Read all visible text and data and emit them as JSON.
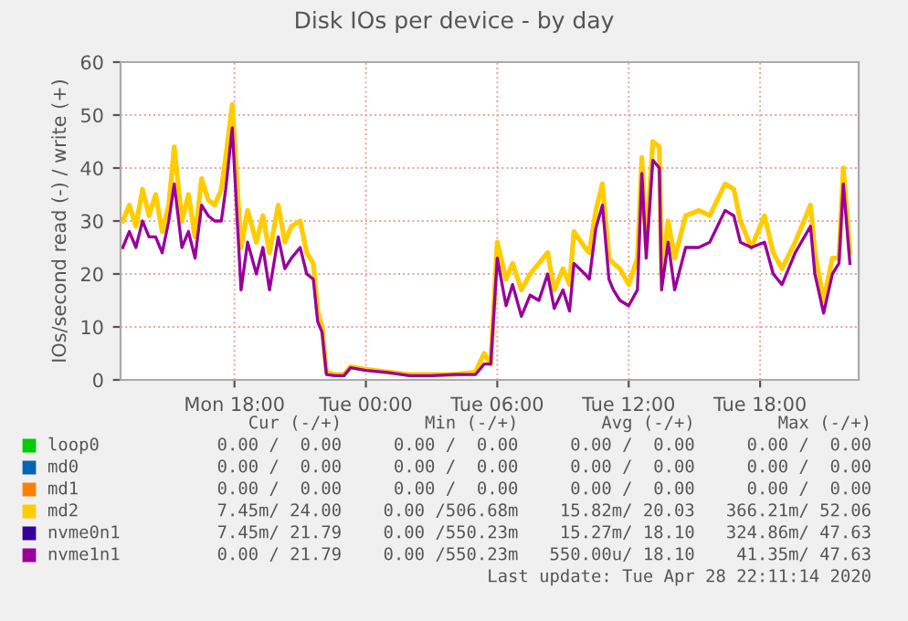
{
  "chart_data": {
    "type": "line",
    "title": "Disk IOs per device - by day",
    "ylabel": "IOs/second read (-) / write (+)",
    "x": [
      "2020-04-27T12:54",
      "2020-04-27T13:12",
      "2020-04-27T13:30",
      "2020-04-27T13:48",
      "2020-04-27T14:06",
      "2020-04-27T14:24",
      "2020-04-27T14:42",
      "2020-04-27T15:00",
      "2020-04-27T15:15",
      "2020-04-27T15:36",
      "2020-04-27T15:54",
      "2020-04-27T16:12",
      "2020-04-27T16:30",
      "2020-04-27T16:48",
      "2020-04-27T17:06",
      "2020-04-27T17:24",
      "2020-04-27T17:36",
      "2020-04-27T17:54",
      "2020-04-27T18:18",
      "2020-04-27T18:36",
      "2020-04-27T19:00",
      "2020-04-27T19:18",
      "2020-04-27T19:36",
      "2020-04-27T20:00",
      "2020-04-27T20:18",
      "2020-04-27T20:36",
      "2020-04-27T21:00",
      "2020-04-27T21:18",
      "2020-04-27T21:36",
      "2020-04-27T21:48",
      "2020-04-27T22:00",
      "2020-04-27T22:12",
      "2020-04-27T22:36",
      "2020-04-27T23:00",
      "2020-04-27T23:18",
      "2020-04-28T00:00",
      "2020-04-28T01:00",
      "2020-04-28T02:00",
      "2020-04-28T03:00",
      "2020-04-28T04:00",
      "2020-04-28T05:00",
      "2020-04-28T05:24",
      "2020-04-28T05:42",
      "2020-04-28T06:00",
      "2020-04-28T06:24",
      "2020-04-28T06:42",
      "2020-04-28T07:06",
      "2020-04-28T07:30",
      "2020-04-28T07:54",
      "2020-04-28T08:18",
      "2020-04-28T08:36",
      "2020-04-28T09:00",
      "2020-04-28T09:18",
      "2020-04-28T09:30",
      "2020-04-28T10:00",
      "2020-04-28T10:12",
      "2020-04-28T10:30",
      "2020-04-28T10:48",
      "2020-04-28T11:06",
      "2020-04-28T11:18",
      "2020-04-28T11:36",
      "2020-04-28T12:00",
      "2020-04-28T12:24",
      "2020-04-28T12:36",
      "2020-04-28T12:48",
      "2020-04-28T13:06",
      "2020-04-28T13:24",
      "2020-04-28T13:30",
      "2020-04-28T13:48",
      "2020-04-28T14:06",
      "2020-04-28T14:36",
      "2020-04-28T15:12",
      "2020-04-28T15:42",
      "2020-04-28T16:24",
      "2020-04-28T16:48",
      "2020-04-28T17:06",
      "2020-04-28T17:36",
      "2020-04-28T18:12",
      "2020-04-28T18:36",
      "2020-04-28T19:00",
      "2020-04-28T19:36",
      "2020-04-28T20:18",
      "2020-04-28T20:30",
      "2020-04-28T20:54",
      "2020-04-28T21:18",
      "2020-04-28T21:36",
      "2020-04-28T21:48",
      "2020-04-28T22:06"
    ],
    "series": [
      {
        "name": "loop0",
        "color": "#00cc00",
        "values": [
          null,
          null,
          null,
          null,
          null,
          null,
          null,
          null,
          null,
          null,
          null,
          null,
          null,
          null,
          null,
          null,
          null,
          null,
          null,
          null,
          null,
          null,
          null,
          null,
          null,
          null,
          null,
          null,
          null,
          null,
          null,
          null,
          null,
          null,
          null,
          null,
          null,
          null,
          null,
          null,
          null,
          null,
          null,
          null,
          null,
          null,
          null,
          null,
          null,
          null,
          null,
          null,
          null,
          null,
          null,
          null,
          null,
          null,
          null,
          null,
          null,
          null,
          null,
          null,
          null,
          null,
          null,
          null,
          null,
          null,
          null,
          null,
          null,
          null,
          null,
          null,
          null,
          null,
          null,
          null,
          null,
          null,
          null,
          null,
          null,
          null,
          null,
          null
        ]
      },
      {
        "name": "md0",
        "color": "#0066b3",
        "values": [
          null,
          null,
          null,
          null,
          null,
          null,
          null,
          null,
          null,
          null,
          null,
          null,
          null,
          null,
          null,
          null,
          null,
          null,
          null,
          null,
          null,
          null,
          null,
          null,
          null,
          null,
          null,
          null,
          null,
          null,
          null,
          null,
          null,
          null,
          null,
          null,
          null,
          null,
          null,
          null,
          null,
          null,
          null,
          null,
          null,
          null,
          null,
          null,
          null,
          null,
          null,
          null,
          null,
          null,
          null,
          null,
          null,
          null,
          null,
          null,
          null,
          null,
          null,
          null,
          null,
          null,
          null,
          null,
          null,
          null,
          null,
          null,
          null,
          null,
          null,
          null,
          null,
          null,
          null,
          null,
          null,
          null,
          null,
          null,
          null,
          null,
          null,
          null
        ]
      },
      {
        "name": "md1",
        "color": "#ff8000",
        "values": [
          null,
          null,
          null,
          null,
          null,
          null,
          null,
          null,
          null,
          null,
          null,
          null,
          null,
          null,
          null,
          null,
          null,
          null,
          null,
          null,
          null,
          null,
          null,
          null,
          null,
          null,
          null,
          null,
          null,
          null,
          null,
          null,
          null,
          null,
          null,
          null,
          null,
          null,
          null,
          null,
          null,
          null,
          null,
          null,
          null,
          null,
          null,
          null,
          null,
          null,
          null,
          null,
          null,
          null,
          null,
          null,
          null,
          null,
          null,
          null,
          null,
          null,
          null,
          null,
          null,
          null,
          null,
          null,
          null,
          null,
          null,
          null,
          null,
          null,
          null,
          null,
          null,
          null,
          null,
          null,
          null,
          null,
          null,
          null,
          null,
          null,
          null,
          null
        ]
      },
      {
        "name": "md2",
        "color": "#ffcc00",
        "values": [
          30,
          33,
          29,
          36,
          31,
          35,
          28,
          33,
          44,
          30,
          35,
          27,
          38,
          34,
          33,
          36,
          42,
          52,
          25,
          32,
          26,
          31,
          24,
          33,
          26,
          29,
          30,
          24,
          22,
          13,
          10,
          1.5,
          1,
          1,
          2.5,
          2,
          1.5,
          1,
          1,
          1,
          1.5,
          5,
          3,
          26,
          19,
          22,
          17,
          20,
          22,
          24,
          17,
          21,
          18,
          28,
          25,
          24,
          32,
          37,
          23,
          22,
          21,
          18,
          23,
          42,
          25,
          45,
          44,
          20,
          30,
          23,
          31,
          32,
          31,
          37,
          36,
          30,
          25,
          31,
          24,
          21,
          26,
          33,
          24,
          15,
          23,
          23,
          40,
          24
        ]
      },
      {
        "name": "nvme0n1",
        "color": "#330099",
        "values": [
          null,
          null,
          null,
          null,
          null,
          null,
          null,
          null,
          null,
          null,
          null,
          null,
          null,
          null,
          null,
          null,
          null,
          null,
          null,
          null,
          null,
          null,
          null,
          null,
          null,
          null,
          null,
          null,
          null,
          null,
          null,
          null,
          null,
          null,
          null,
          null,
          null,
          null,
          null,
          null,
          null,
          null,
          null,
          null,
          null,
          null,
          null,
          null,
          null,
          null,
          null,
          null,
          null,
          null,
          null,
          null,
          null,
          null,
          null,
          null,
          null,
          null,
          null,
          null,
          null,
          null,
          null,
          null,
          null,
          null,
          null,
          null,
          null,
          null,
          null,
          null,
          null,
          null,
          null,
          null,
          null,
          null,
          null,
          null,
          null,
          null,
          null,
          null
        ]
      },
      {
        "name": "nvme1n1",
        "color": "#990099",
        "values": [
          25,
          28,
          25,
          30,
          27,
          27,
          24,
          30,
          37,
          25,
          28,
          23,
          33,
          31,
          30,
          30,
          36,
          47.6,
          17,
          26,
          20,
          25,
          17,
          27,
          21,
          23,
          25,
          20,
          19,
          11,
          9,
          1,
          0.8,
          0.8,
          2.3,
          1.8,
          1.4,
          0.8,
          0.8,
          1,
          1,
          3,
          3,
          23,
          14,
          18,
          12,
          16,
          15,
          20,
          13.5,
          17,
          13,
          22,
          20,
          19,
          28.6,
          33,
          19,
          17,
          15,
          14,
          17,
          39,
          23,
          41.5,
          40,
          17,
          26,
          17,
          25,
          25,
          26,
          32,
          31,
          26,
          25,
          26,
          20,
          18,
          24,
          29,
          20,
          12.6,
          20,
          22,
          37,
          22
        ]
      }
    ],
    "xlim": [
      "2020-04-27T12:48",
      "2020-04-28T22:30"
    ],
    "ylim": [
      0,
      60
    ],
    "xticks": [
      {
        "value": "2020-04-27T18:00",
        "label": "Mon 18:00"
      },
      {
        "value": "2020-04-28T00:00",
        "label": "Tue 00:00"
      },
      {
        "value": "2020-04-28T06:00",
        "label": "Tue 06:00"
      },
      {
        "value": "2020-04-28T12:00",
        "label": "Tue 12:00"
      },
      {
        "value": "2020-04-28T18:00",
        "label": "Tue 18:00"
      }
    ],
    "yticks": [
      0,
      10,
      20,
      30,
      40,
      50,
      60
    ],
    "grid": true,
    "legend": "bottom",
    "annotations": [
      "Cur (-/+)        Min (-/+)        Avg (-/+)        Max (-/+)",
      "0.00 /  0.00     0.00 /  0.00     0.00 /  0.00     0.00 /  0.00",
      "0.00 /  0.00     0.00 /  0.00     0.00 /  0.00     0.00 /  0.00",
      "0.00 /  0.00     0.00 /  0.00     0.00 /  0.00     0.00 /  0.00",
      "7.45m/ 24.00    0.00 /506.68m    15.82m/ 20.03   366.21m/ 52.06",
      "7.45m/ 21.79    0.00 /550.23m    15.27m/ 18.10   324.86m/ 47.63",
      "0.00 / 21.79    0.00 /550.23m   550.00u/ 18.10    41.35m/ 47.63",
      "Last update: Tue Apr 28 22:11:14 2020"
    ]
  }
}
